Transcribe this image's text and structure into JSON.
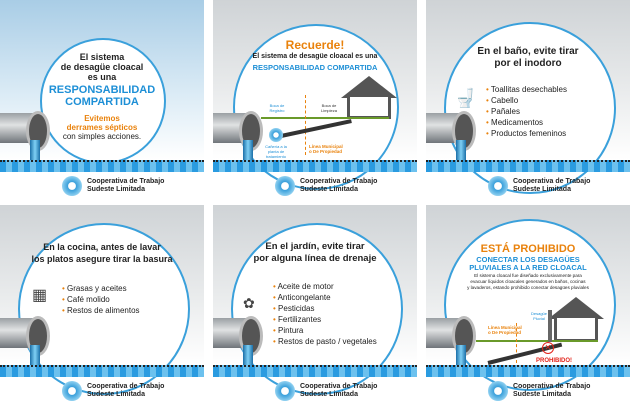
{
  "logo": {
    "line1": "Cooperativa de Trabajo",
    "line2": "Sudeste Limitada"
  },
  "panels": [
    {
      "l1": "El sistema",
      "l2": "de desagüe cloacal",
      "l3": "es una",
      "h1": "RESPONSABILIDAD",
      "h2": "COMPARTIDA",
      "o1": "Evitemos",
      "o2": "derrames sépticos",
      "b": "con simples acciones."
    },
    {
      "title": "Recuerde!",
      "l1": "El sistema de desagüe cloacal es una",
      "h": "RESPONSABILIDAD COMPARTIDA",
      "labels": {
        "registro": "Boca de Registro",
        "limpieza": "Boca de Limpieza",
        "linea1": "Línea Municipal",
        "linea2": "o De Propiedad",
        "camara": "Cañería a la planta de tratamiento"
      }
    },
    {
      "l1": "En el baño, evite tirar",
      "l2": "por el inodoro",
      "icon": "toilet-icon",
      "items": [
        "Toallitas desechables",
        "Cabello",
        "Pañales",
        "Medicamentos",
        "Productos femeninos"
      ]
    },
    {
      "l1": "En la cocina, antes de lavar",
      "l2": "los platos asegure tirar la basura",
      "icon": "stove-icon",
      "items": [
        "Grasas y aceites",
        "Café molido",
        "Restos de alimentos"
      ]
    },
    {
      "l1": "En el jardín, evite tirar",
      "l2": "por alguna línea de drenaje",
      "icon": "garden-icon",
      "items": [
        "Aceite de motor",
        "Anticongelante",
        "Pesticidas",
        "Fertilizantes",
        "Pintura",
        "Restos de pasto / vegetales"
      ]
    },
    {
      "title": "ESTÁ PROHIBIDO",
      "h1": "CONECTAR LOS DESAGÜES",
      "h2": "PLUVIALES A LA RED CLOACAL",
      "b1": "El sistema cloacal fue diseñado exclusivamente para",
      "b2": "evacuar líquidos cloacales generados en baños, cocinas",
      "b3": "y lavaderos, estando prohibido conectar desagües pluviales",
      "labels": {
        "pluvial": "Desagüe Pluvial",
        "linea1": "Línea Municipal",
        "linea2": "o De Propiedad",
        "prohibido": "PROHIBIDO!"
      }
    }
  ]
}
